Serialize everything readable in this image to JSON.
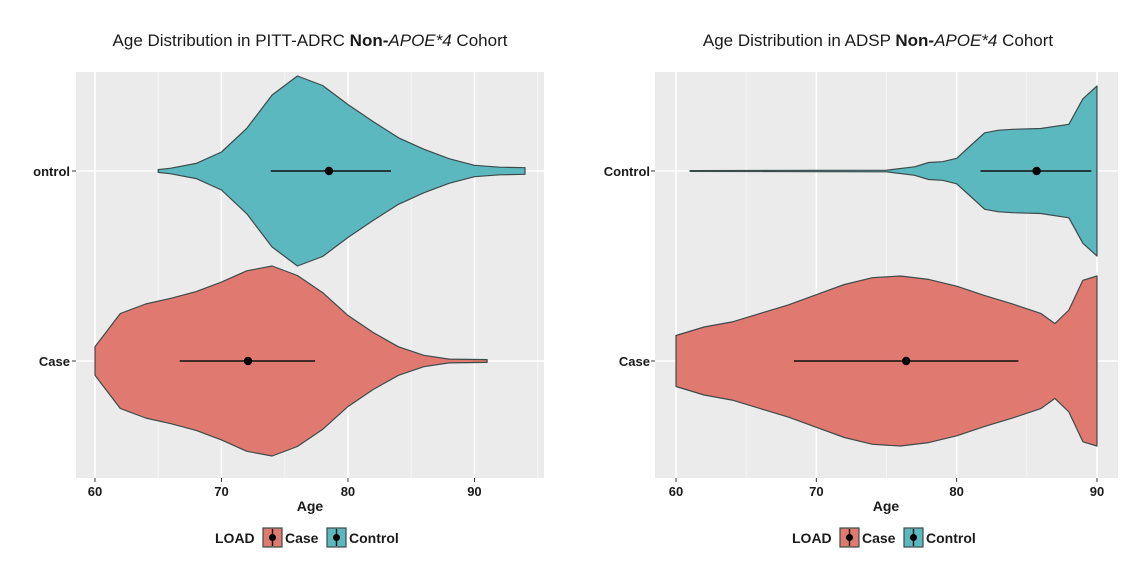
{
  "chart_data": [
    {
      "type": "violin",
      "title": {
        "prefix": "Age Distribution in PITT-ADRC ",
        "bold": "Non-",
        "italic": "APOE*4",
        "suffix": " Cohort"
      },
      "xlabel": "Age",
      "ylabel": "",
      "xlim": [
        58.5,
        95.5
      ],
      "xticks": [
        60,
        70,
        80,
        90
      ],
      "categories": [
        "Case",
        "ontrol"
      ],
      "grid": true,
      "legend": {
        "title": "LOAD",
        "entries": [
          "Case",
          "Control"
        ],
        "position": "bottom"
      },
      "series": [
        {
          "name": "Case",
          "color": "#E07A70",
          "mean": 72.1,
          "interval": [
            66.7,
            77.4
          ],
          "density": [
            [
              60,
              0.15
            ],
            [
              62,
              0.5
            ],
            [
              64,
              0.6
            ],
            [
              66,
              0.66
            ],
            [
              68,
              0.73
            ],
            [
              70,
              0.83
            ],
            [
              72,
              0.95
            ],
            [
              74,
              1.0
            ],
            [
              76,
              0.9
            ],
            [
              78,
              0.72
            ],
            [
              80,
              0.48
            ],
            [
              82,
              0.3
            ],
            [
              84,
              0.15
            ],
            [
              86,
              0.06
            ],
            [
              88,
              0.02
            ],
            [
              91,
              0.015
            ]
          ]
        },
        {
          "name": "Control",
          "color": "#5BB8BF",
          "mean": 78.5,
          "interval": [
            73.9,
            83.4
          ],
          "density": [
            [
              65,
              0.015
            ],
            [
              66,
              0.03
            ],
            [
              68,
              0.08
            ],
            [
              70,
              0.2
            ],
            [
              72,
              0.45
            ],
            [
              74,
              0.8
            ],
            [
              76,
              1.0
            ],
            [
              78,
              0.9
            ],
            [
              80,
              0.7
            ],
            [
              82,
              0.52
            ],
            [
              84,
              0.35
            ],
            [
              86,
              0.23
            ],
            [
              88,
              0.13
            ],
            [
              90,
              0.06
            ],
            [
              92,
              0.04
            ],
            [
              94,
              0.035
            ]
          ]
        }
      ]
    },
    {
      "type": "violin",
      "title": {
        "prefix": "Age Distribution in ADSP ",
        "bold": "Non-",
        "italic": "APOE*4",
        "suffix": " Cohort"
      },
      "xlabel": "Age",
      "ylabel": "",
      "xlim": [
        58.5,
        91.5
      ],
      "xticks": [
        60,
        70,
        80,
        90
      ],
      "categories": [
        "Case",
        "Control"
      ],
      "grid": true,
      "legend": {
        "title": "LOAD",
        "entries": [
          "Case",
          "Control"
        ],
        "position": "bottom"
      },
      "series": [
        {
          "name": "Case",
          "color": "#E07A70",
          "mean": 76.4,
          "interval": [
            68.4,
            84.4
          ],
          "density": [
            [
              60,
              0.3
            ],
            [
              62,
              0.4
            ],
            [
              64,
              0.46
            ],
            [
              66,
              0.56
            ],
            [
              68,
              0.66
            ],
            [
              70,
              0.78
            ],
            [
              72,
              0.9
            ],
            [
              74,
              0.98
            ],
            [
              76,
              1.0
            ],
            [
              78,
              0.96
            ],
            [
              80,
              0.88
            ],
            [
              82,
              0.77
            ],
            [
              84,
              0.67
            ],
            [
              86,
              0.56
            ],
            [
              87,
              0.44
            ],
            [
              88,
              0.6
            ],
            [
              89,
              0.95
            ],
            [
              90,
              1.0
            ]
          ]
        },
        {
          "name": "Control",
          "color": "#5BB8BF",
          "mean": 85.7,
          "interval": [
            81.7,
            89.6
          ],
          "density": [
            [
              61,
              0.005
            ],
            [
              70,
              0.008
            ],
            [
              75,
              0.01
            ],
            [
              77,
              0.05
            ],
            [
              78,
              0.1
            ],
            [
              79,
              0.11
            ],
            [
              80,
              0.15
            ],
            [
              81,
              0.3
            ],
            [
              82,
              0.45
            ],
            [
              83,
              0.48
            ],
            [
              84,
              0.49
            ],
            [
              86,
              0.5
            ],
            [
              88,
              0.55
            ],
            [
              89,
              0.85
            ],
            [
              90,
              1.0
            ]
          ]
        }
      ]
    }
  ]
}
